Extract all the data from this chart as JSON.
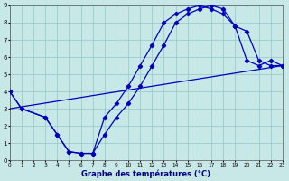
{
  "xlabel": "Graphe des températures (°C)",
  "xlim": [
    0,
    23
  ],
  "ylim": [
    0,
    9
  ],
  "xticks": [
    0,
    1,
    2,
    3,
    4,
    5,
    6,
    7,
    8,
    9,
    10,
    11,
    12,
    13,
    14,
    15,
    16,
    17,
    18,
    19,
    20,
    21,
    22,
    23
  ],
  "yticks": [
    0,
    1,
    2,
    3,
    4,
    5,
    6,
    7,
    8,
    9
  ],
  "bg_color": "#c8e8e8",
  "line_color": "#0000bb",
  "grid_color": "#99cccc",
  "curve1_x": [
    0,
    1,
    3,
    4,
    5,
    6,
    7,
    8,
    9,
    10,
    11,
    12,
    13,
    14,
    15,
    16,
    17,
    18,
    19,
    20,
    21,
    22,
    23
  ],
  "curve1_y": [
    4.0,
    3.0,
    2.5,
    1.5,
    0.5,
    0.4,
    0.4,
    1.5,
    2.5,
    3.3,
    4.3,
    5.5,
    6.7,
    8.0,
    8.5,
    8.8,
    9.0,
    8.8,
    7.8,
    5.8,
    5.5,
    5.8,
    5.5
  ],
  "curve2_x": [
    0,
    1,
    3,
    4,
    5,
    6,
    7,
    8,
    9,
    10,
    11,
    12,
    13,
    14,
    15,
    16,
    17,
    18,
    19,
    20,
    21,
    22,
    23
  ],
  "curve2_y": [
    4.0,
    3.0,
    2.5,
    1.5,
    0.5,
    0.4,
    0.4,
    2.5,
    3.3,
    4.3,
    5.5,
    6.7,
    8.0,
    8.5,
    8.8,
    9.0,
    8.8,
    8.5,
    7.8,
    7.5,
    5.8,
    5.5,
    5.5
  ],
  "trend_x": [
    0,
    23
  ],
  "trend_y": [
    3.0,
    5.5
  ]
}
